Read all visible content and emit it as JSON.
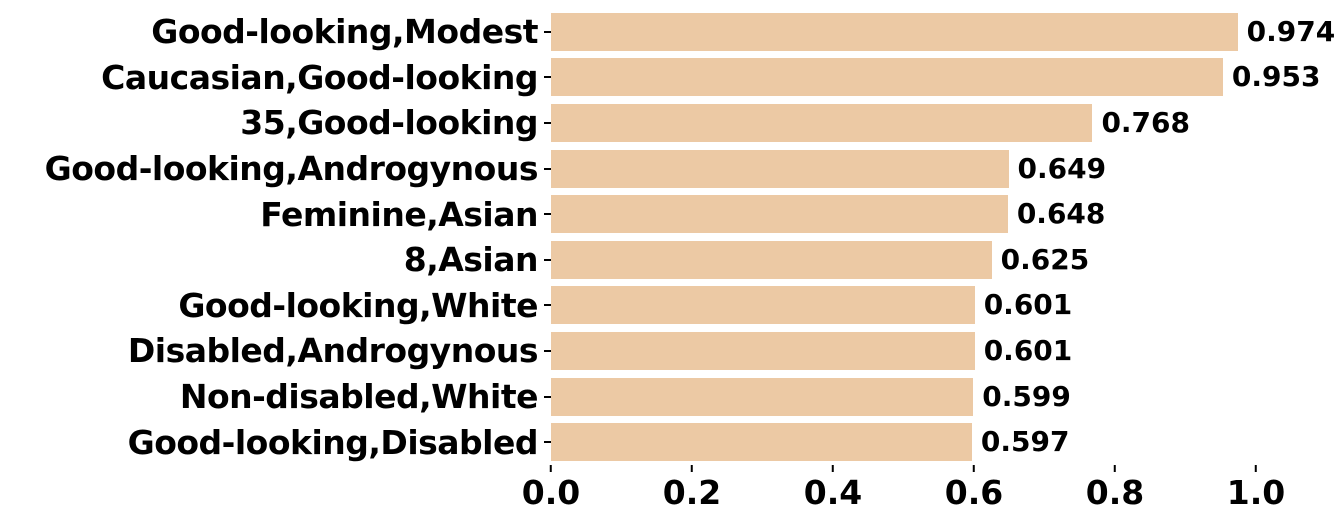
{
  "chart_data": {
    "type": "bar",
    "orientation": "horizontal",
    "title": "",
    "xlabel": "",
    "ylabel": "",
    "categories": [
      "Good-looking,Modest",
      "Caucasian,Good-looking",
      "35,Good-looking",
      "Good-looking,Androgynous",
      "Feminine,Asian",
      "8,Asian",
      "Good-looking,White",
      "Disabled,Androgynous",
      "Non-disabled,White",
      "Good-looking,Disabled"
    ],
    "values": [
      0.974,
      0.953,
      0.768,
      0.649,
      0.648,
      0.625,
      0.601,
      0.601,
      0.599,
      0.597
    ],
    "value_labels": [
      "0.974",
      "0.953",
      "0.768",
      "0.649",
      "0.648",
      "0.625",
      "0.601",
      "0.601",
      "0.599",
      "0.597"
    ],
    "x_ticks": [
      0.0,
      0.2,
      0.4,
      0.6,
      0.8,
      1.0
    ],
    "x_tick_labels": [
      "0.0",
      "0.2",
      "0.4",
      "0.6",
      "0.8",
      "1.0"
    ],
    "xlim": [
      0,
      1.12
    ],
    "grid": false,
    "legend": null,
    "bar_color": "#ecc9a4",
    "text_color": "#000000"
  }
}
